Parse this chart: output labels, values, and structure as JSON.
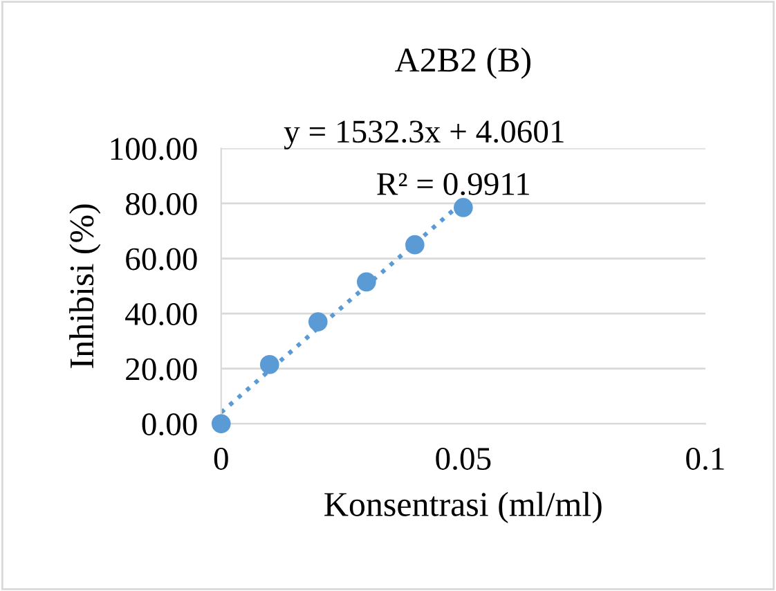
{
  "chart_data": {
    "type": "scatter",
    "title": "A2B2 (B)",
    "xlabel": "Konsentrasi (ml/ml)",
    "ylabel": "Inhibisi (%)",
    "x": [
      0,
      0.01,
      0.02,
      0.03,
      0.04,
      0.05
    ],
    "series": [
      {
        "color": "#5b9bd5",
        "marker": "circle",
        "values": [
          0,
          21.5,
          37,
          51.5,
          65,
          78.5
        ]
      },
      {
        "type": "line",
        "color": "#5b9bd5",
        "line_style": "dotted",
        "marker": "none",
        "x": [
          0,
          0.05
        ],
        "values": [
          4.1,
          80.7
        ]
      }
    ],
    "annotations": [
      "y = 1532.3x + 4.0601",
      "R² = 0.9911"
    ],
    "xlim": [
      0,
      0.1
    ],
    "xticks": [
      0,
      0.05,
      0.1
    ],
    "ylim": [
      0,
      100
    ],
    "yticks": [
      {
        "value": 0,
        "label": "0.00"
      },
      {
        "value": 20,
        "label": "20.00"
      },
      {
        "value": 40,
        "label": "40.00"
      },
      {
        "value": 60,
        "label": "60.00"
      },
      {
        "value": 80,
        "label": "80.00"
      },
      {
        "value": 100,
        "label": "100.00"
      }
    ],
    "grid": "y",
    "legend": false
  }
}
